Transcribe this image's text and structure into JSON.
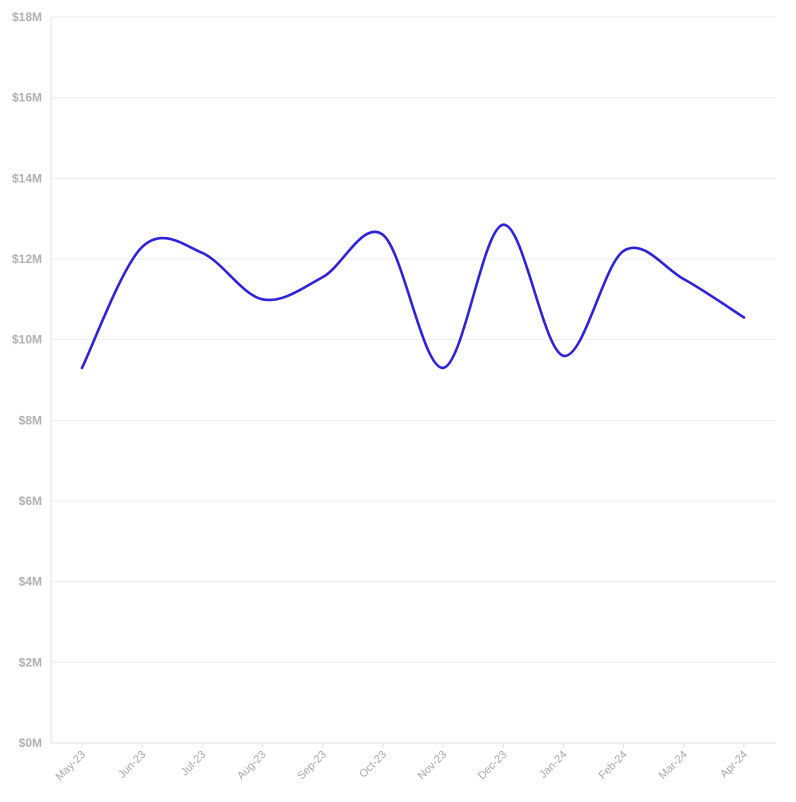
{
  "chart_data": {
    "type": "line",
    "title": "",
    "xlabel": "",
    "ylabel": "",
    "categories": [
      "May-23",
      "Jun-23",
      "Jul-23",
      "Aug-23",
      "Sep-23",
      "Oct-23",
      "Nov-23",
      "Dec-23",
      "Jan-24",
      "Feb-24",
      "Mar-24",
      "Apr-24"
    ],
    "series": [
      {
        "values": [
          9.3,
          12.3,
          12.15,
          11.0,
          11.55,
          12.6,
          9.3,
          12.85,
          9.6,
          12.2,
          11.5,
          10.55
        ],
        "color": "#2f22d8"
      }
    ],
    "yticks": [
      "$0M",
      "$2M",
      "$4M",
      "$6M",
      "$8M",
      "$10M",
      "$12M",
      "$14M",
      "$16M",
      "$18M"
    ],
    "ylim": [
      0,
      18
    ],
    "grid": true,
    "legend": "none"
  }
}
